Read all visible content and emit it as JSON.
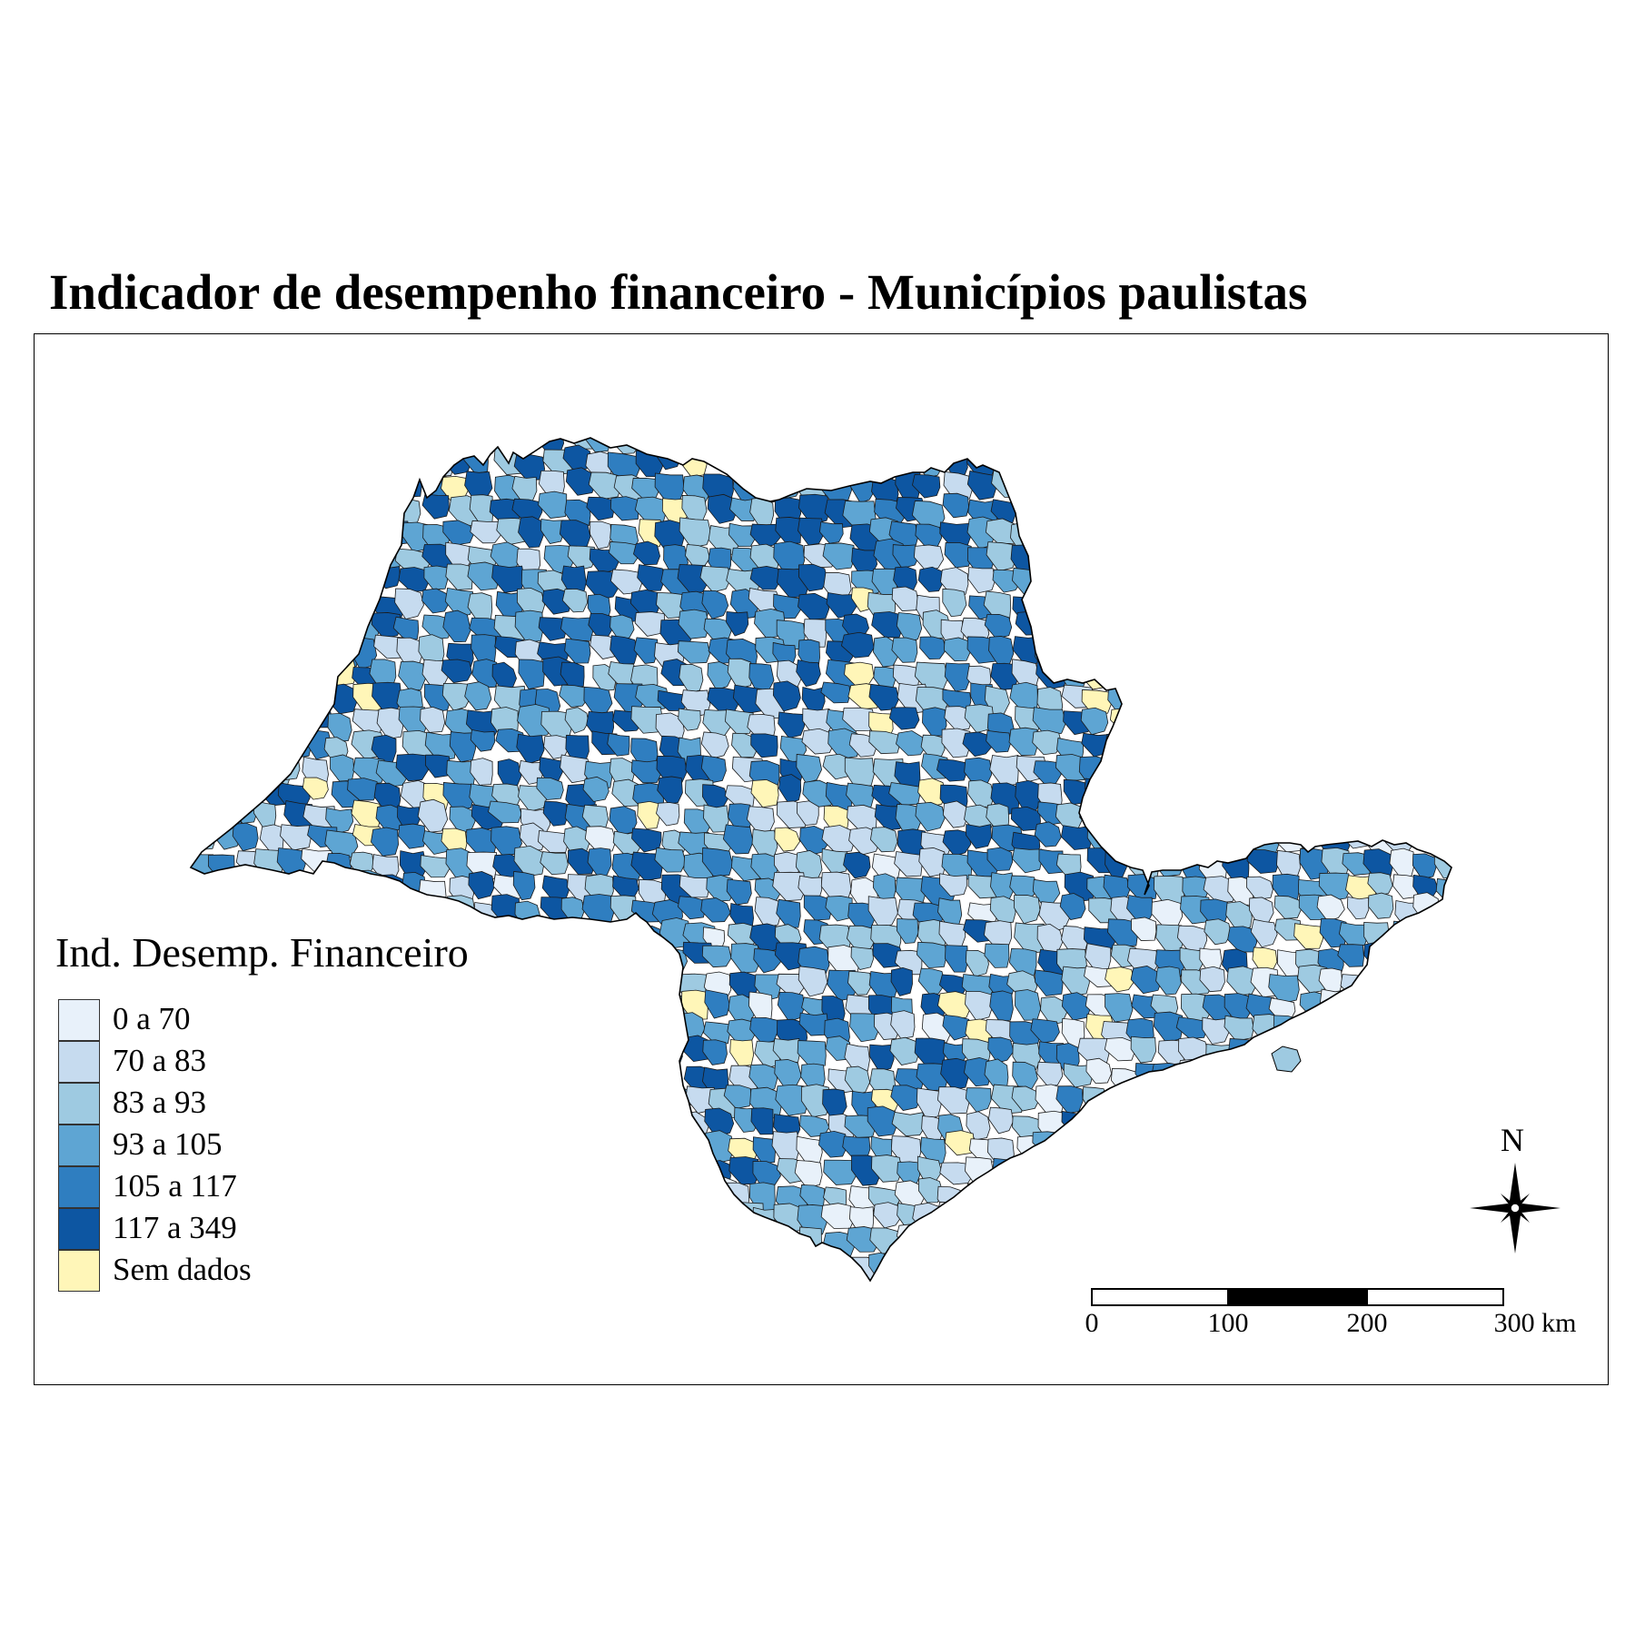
{
  "title": "Indicador de desempenho financeiro - Municípios paulistas",
  "legend": {
    "title": "Ind. Desemp. Financeiro",
    "items": [
      {
        "label": "0  a  70",
        "color": "#e8f1fa"
      },
      {
        "label": "70  a  83",
        "color": "#c6dbef"
      },
      {
        "label": "83  a  93",
        "color": "#9ecae1"
      },
      {
        "label": "93  a  105",
        "color": "#5ea5d3"
      },
      {
        "label": "105  a  117",
        "color": "#2f7ec0"
      },
      {
        "label": "117  a  349",
        "color": "#0d56a2"
      },
      {
        "label": "Sem dados",
        "color": "#fff6b8"
      }
    ]
  },
  "north_arrow": {
    "label": "N"
  },
  "scale_bar": {
    "ticks": [
      "0",
      "100",
      "200",
      "300  km"
    ]
  },
  "colors": {
    "border": "#000000",
    "frame": "#000000"
  }
}
